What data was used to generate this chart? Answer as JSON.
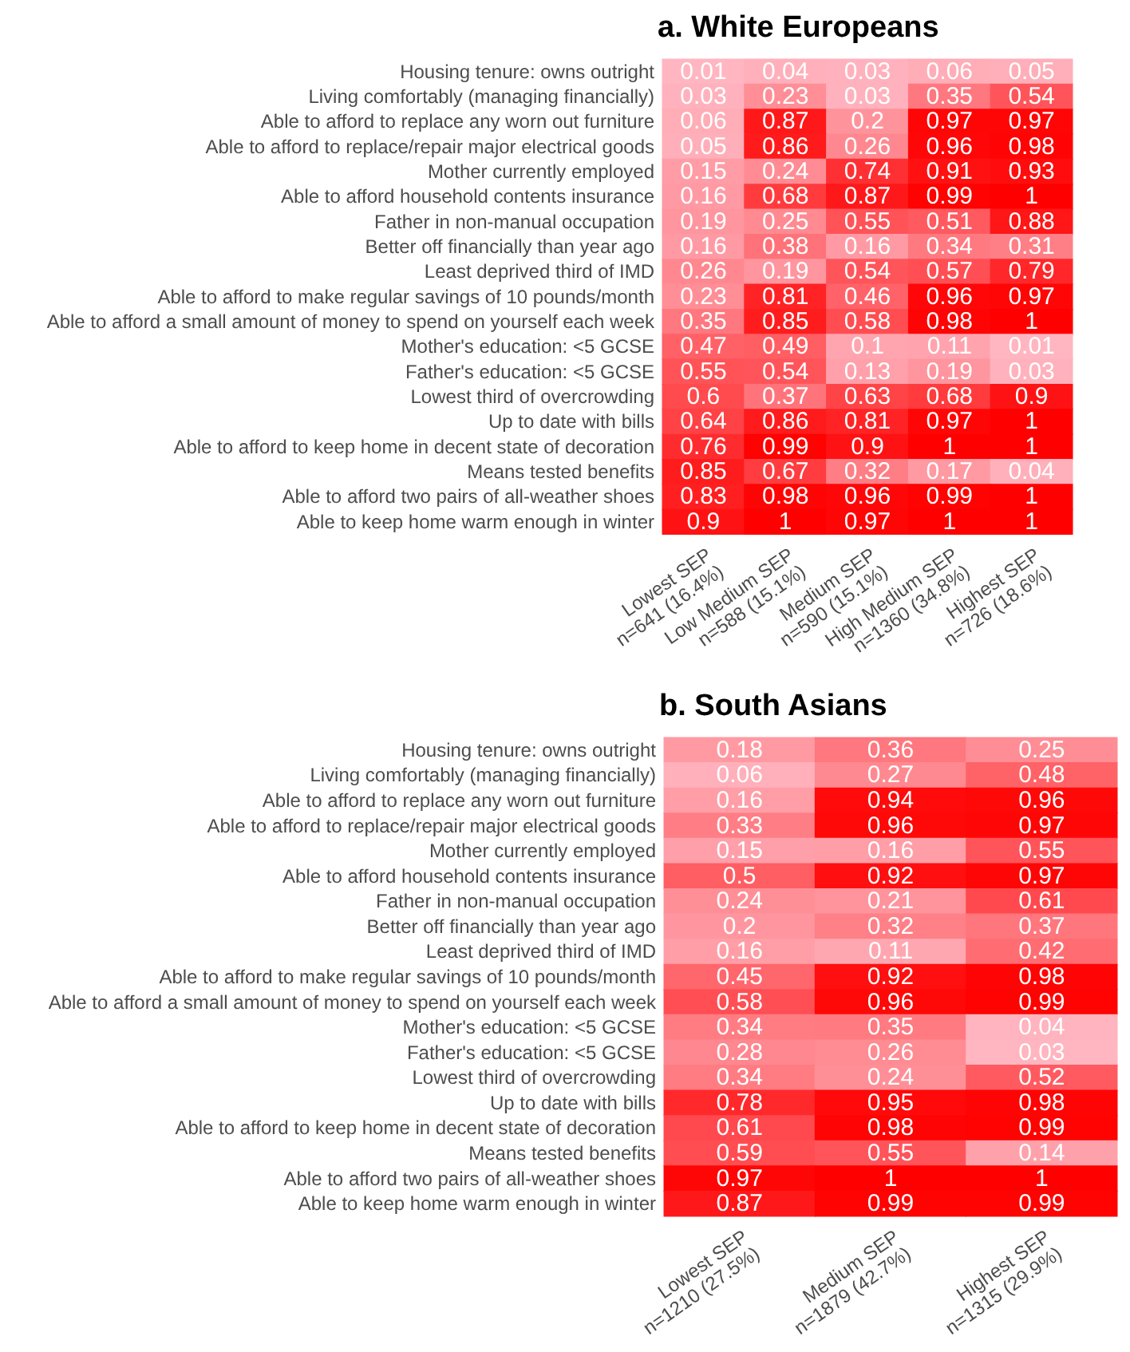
{
  "chart_data": [
    {
      "type": "heatmap",
      "title": "a. White Europeans",
      "data_labels": true,
      "categories": [
        "Lowest SEP\nn=641 (16.4%)",
        "Low Medium SEP\nn=588 (15.1%)",
        "Medium SEP\nn=590 (15.1%)",
        "High Medium SEP\nn=1360 (34.8%)",
        "Highest SEP\nn=726 (18.6%)"
      ],
      "y_categories": [
        "Housing tenure: owns outright",
        "Living comfortably (managing financially)",
        "Able to afford to replace any worn out furniture",
        "Able to afford to replace/repair major electrical goods",
        "Mother currently employed",
        "Able to afford household contents insurance",
        "Father in non-manual occupation",
        "Better off financially than year ago",
        "Least deprived third of IMD",
        "Able to afford to make regular savings of 10 pounds/month",
        "Able to afford a small amount of money to spend on yourself each week",
        "Mother's education: <5 GCSE",
        "Father's education: <5 GCSE",
        "Lowest third of overcrowding",
        "Up to date with bills",
        "Able to afford to keep home in decent state of decoration",
        "Means tested benefits",
        "Able to afford two pairs of all-weather shoes",
        "Able to keep home warm enough in winter"
      ],
      "cells": [
        [
          0.01,
          0.04,
          0.03,
          0.06,
          0.05
        ],
        [
          0.03,
          0.23,
          0.03,
          0.35,
          0.54
        ],
        [
          0.06,
          0.87,
          0.2,
          0.97,
          0.97
        ],
        [
          0.05,
          0.86,
          0.26,
          0.96,
          0.98
        ],
        [
          0.15,
          0.24,
          0.74,
          0.91,
          0.93
        ],
        [
          0.16,
          0.68,
          0.87,
          0.99,
          1
        ],
        [
          0.19,
          0.25,
          0.55,
          0.51,
          0.88
        ],
        [
          0.16,
          0.38,
          0.16,
          0.34,
          0.31
        ],
        [
          0.26,
          0.19,
          0.54,
          0.57,
          0.79
        ],
        [
          0.23,
          0.81,
          0.46,
          0.96,
          0.97
        ],
        [
          0.35,
          0.85,
          0.58,
          0.98,
          1
        ],
        [
          0.47,
          0.49,
          0.1,
          0.11,
          0.01
        ],
        [
          0.55,
          0.54,
          0.13,
          0.19,
          0.03
        ],
        [
          0.6,
          0.37,
          0.63,
          0.68,
          0.9
        ],
        [
          0.64,
          0.86,
          0.81,
          0.97,
          1
        ],
        [
          0.76,
          0.99,
          0.9,
          1,
          1
        ],
        [
          0.85,
          0.67,
          0.32,
          0.17,
          0.04
        ],
        [
          0.83,
          0.98,
          0.96,
          0.99,
          1
        ],
        [
          0.9,
          1,
          0.97,
          1,
          1
        ]
      ]
    },
    {
      "type": "heatmap",
      "title": "b. South Asians",
      "data_labels": true,
      "categories": [
        "Lowest SEP\nn=1210 (27.5%)",
        "Medium SEP\nn=1879 (42.7%)",
        "Highest SEP\nn=1315 (29.9%)"
      ],
      "y_categories": [
        "Housing tenure: owns outright",
        "Living comfortably (managing financially)",
        "Able to afford to replace any worn out furniture",
        "Able to afford to replace/repair major electrical goods",
        "Mother currently employed",
        "Able to afford household contents insurance",
        "Father in non-manual occupation",
        "Better off financially than year ago",
        "Least deprived third of IMD",
        "Able to afford to make regular savings of 10 pounds/month",
        "Able to afford a small amount of money to spend on yourself each week",
        "Mother's education: <5 GCSE",
        "Father's education: <5 GCSE",
        "Lowest third of overcrowding",
        "Up to date with bills",
        "Able to afford to keep home in decent state of decoration",
        "Means tested benefits",
        "Able to afford two pairs of all-weather shoes",
        "Able to keep home warm enough in winter"
      ],
      "cells": [
        [
          0.18,
          0.36,
          0.25
        ],
        [
          0.06,
          0.27,
          0.48
        ],
        [
          0.16,
          0.94,
          0.96
        ],
        [
          0.33,
          0.96,
          0.97
        ],
        [
          0.15,
          0.16,
          0.55
        ],
        [
          0.5,
          0.92,
          0.97
        ],
        [
          0.24,
          0.21,
          0.61
        ],
        [
          0.2,
          0.32,
          0.37
        ],
        [
          0.16,
          0.11,
          0.42
        ],
        [
          0.45,
          0.92,
          0.98
        ],
        [
          0.58,
          0.96,
          0.99
        ],
        [
          0.34,
          0.35,
          0.04
        ],
        [
          0.28,
          0.26,
          0.03
        ],
        [
          0.34,
          0.24,
          0.52
        ],
        [
          0.78,
          0.95,
          0.98
        ],
        [
          0.61,
          0.98,
          0.99
        ],
        [
          0.59,
          0.55,
          0.14
        ],
        [
          0.97,
          1,
          1
        ],
        [
          0.87,
          0.99,
          0.99
        ]
      ]
    }
  ]
}
